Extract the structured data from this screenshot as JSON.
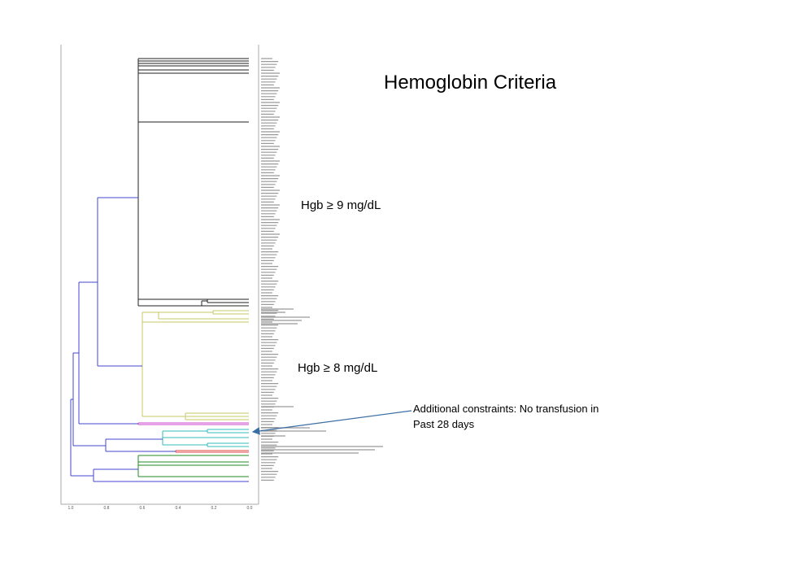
{
  "title": "Hemoglobin Criteria",
  "annotations": {
    "hgb9": "Hgb ≥ 9 mg/dL",
    "hgb8": "Hgb ≥ 8 mg/dL",
    "constraint_line1": "Additional constraints: No transfusion in",
    "constraint_line2": "Past 28 days"
  },
  "x_axis": {
    "ticks": [
      "1.0",
      "0.8",
      "0.6",
      "0.4",
      "0.2",
      "0.0"
    ],
    "reversed": true
  },
  "colors": {
    "root_links": "#4444cc",
    "cluster_hgb9": "#222222",
    "cluster_hgb8": "#c8c864",
    "cluster_magenta": "#cc44cc",
    "cluster_cyan": "#33bbbb",
    "cluster_red": "#dd4444",
    "cluster_green": "#228822",
    "arrow": "#3a6ea5",
    "leaf_labels": "#999999"
  },
  "leaf_labels": "illegible (tiny text beside each leaf)"
}
